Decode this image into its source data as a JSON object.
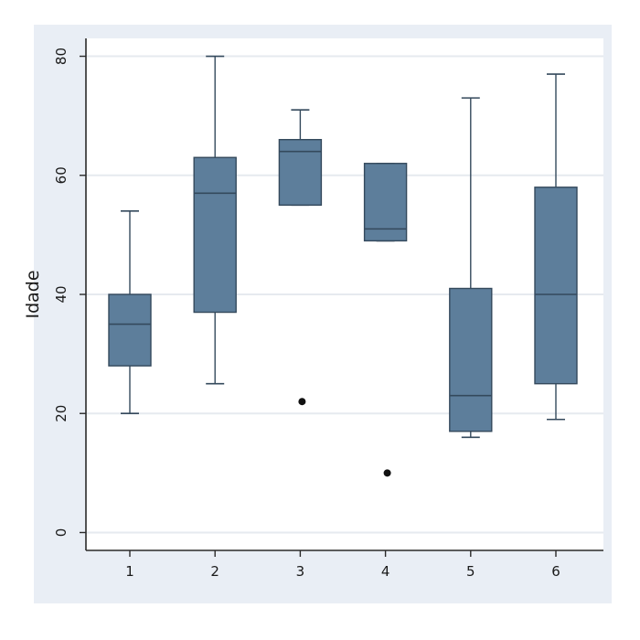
{
  "chart_data": {
    "type": "boxplot",
    "title": "",
    "xlabel": "",
    "ylabel": "Idade",
    "ylim": [
      -3,
      83
    ],
    "yticks": [
      0,
      20,
      40,
      60,
      80
    ],
    "grid": true,
    "legend": "none",
    "categories": [
      "1",
      "2",
      "3",
      "4",
      "5",
      "6"
    ],
    "boxes": [
      {
        "category": "1",
        "whisker_low": 20,
        "q1": 28,
        "median": 35,
        "q3": 40,
        "whisker_high": 54,
        "outliers": []
      },
      {
        "category": "2",
        "whisker_low": 25,
        "q1": 37,
        "median": 57,
        "q3": 63,
        "whisker_high": 80,
        "outliers": []
      },
      {
        "category": "3",
        "whisker_low": 55,
        "q1": 55,
        "median": 64,
        "q3": 66,
        "whisker_high": 71,
        "outliers": [
          22
        ]
      },
      {
        "category": "4",
        "whisker_low": 49,
        "q1": 49,
        "median": 51,
        "q3": 62,
        "whisker_high": 62,
        "outliers": [
          10
        ]
      },
      {
        "category": "5",
        "whisker_low": 16,
        "q1": 17,
        "median": 23,
        "q3": 41,
        "whisker_high": 73,
        "outliers": []
      },
      {
        "category": "6",
        "whisker_low": 19,
        "q1": 25,
        "median": 40,
        "q3": 58,
        "whisker_high": 77,
        "outliers": []
      }
    ],
    "colors": {
      "outer_bg": "#e9eef5",
      "plot_bg": "#ffffff",
      "grid": "#e6eaef",
      "box_fill": "#5d7e9b",
      "box_stroke": "#34495c",
      "axis": "#2a2a2a",
      "outlier": "#111111"
    }
  }
}
